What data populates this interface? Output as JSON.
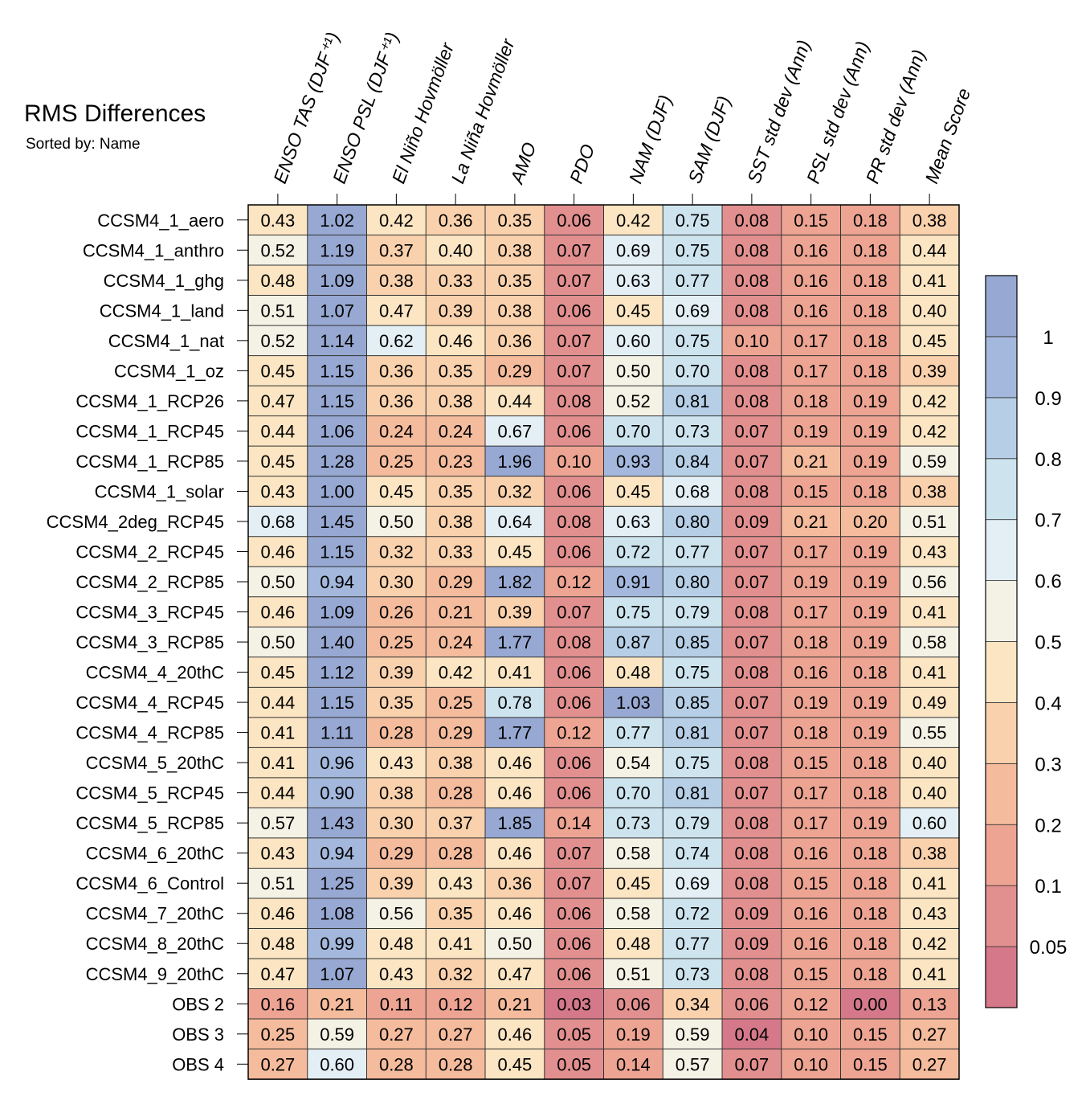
{
  "chart_data": {
    "type": "heatmap",
    "title": "RMS Differences",
    "subtitle": "Sorted by: Name",
    "columns": [
      "ENSO TAS (DJF⁺¹)",
      "ENSO PSL (DJF⁺¹)",
      "El Niño Hovmöller",
      "La Niña Hovmöller",
      "AMO",
      "PDO",
      "NAM (DJF)",
      "SAM (DJF)",
      "SST std dev (Ann)",
      "PSL std dev (Ann)",
      "PR std dev (Ann)",
      "Mean Score"
    ],
    "rows": [
      {
        "name": "CCSM4_1_aero",
        "values": [
          "0.43",
          "1.02",
          "0.42",
          "0.36",
          "0.35",
          "0.06",
          "0.42",
          "0.75",
          "0.08",
          "0.15",
          "0.18",
          "0.38"
        ]
      },
      {
        "name": "CCSM4_1_anthro",
        "values": [
          "0.52",
          "1.19",
          "0.37",
          "0.40",
          "0.38",
          "0.07",
          "0.69",
          "0.75",
          "0.08",
          "0.16",
          "0.18",
          "0.44"
        ]
      },
      {
        "name": "CCSM4_1_ghg",
        "values": [
          "0.48",
          "1.09",
          "0.38",
          "0.33",
          "0.35",
          "0.07",
          "0.63",
          "0.77",
          "0.08",
          "0.16",
          "0.18",
          "0.41"
        ]
      },
      {
        "name": "CCSM4_1_land",
        "values": [
          "0.51",
          "1.07",
          "0.47",
          "0.39",
          "0.38",
          "0.06",
          "0.45",
          "0.69",
          "0.08",
          "0.16",
          "0.18",
          "0.40"
        ]
      },
      {
        "name": "CCSM4_1_nat",
        "values": [
          "0.52",
          "1.14",
          "0.62",
          "0.46",
          "0.36",
          "0.07",
          "0.60",
          "0.75",
          "0.10",
          "0.17",
          "0.18",
          "0.45"
        ]
      },
      {
        "name": "CCSM4_1_oz",
        "values": [
          "0.45",
          "1.15",
          "0.36",
          "0.35",
          "0.29",
          "0.07",
          "0.50",
          "0.70",
          "0.08",
          "0.17",
          "0.18",
          "0.39"
        ]
      },
      {
        "name": "CCSM4_1_RCP26",
        "values": [
          "0.47",
          "1.15",
          "0.36",
          "0.38",
          "0.44",
          "0.08",
          "0.52",
          "0.81",
          "0.08",
          "0.18",
          "0.19",
          "0.42"
        ]
      },
      {
        "name": "CCSM4_1_RCP45",
        "values": [
          "0.44",
          "1.06",
          "0.24",
          "0.24",
          "0.67",
          "0.06",
          "0.70",
          "0.73",
          "0.07",
          "0.19",
          "0.19",
          "0.42"
        ]
      },
      {
        "name": "CCSM4_1_RCP85",
        "values": [
          "0.45",
          "1.28",
          "0.25",
          "0.23",
          "1.96",
          "0.10",
          "0.93",
          "0.84",
          "0.07",
          "0.21",
          "0.19",
          "0.59"
        ]
      },
      {
        "name": "CCSM4_1_solar",
        "values": [
          "0.43",
          "1.00",
          "0.45",
          "0.35",
          "0.32",
          "0.06",
          "0.45",
          "0.68",
          "0.08",
          "0.15",
          "0.18",
          "0.38"
        ]
      },
      {
        "name": "CCSM4_2deg_RCP45",
        "values": [
          "0.68",
          "1.45",
          "0.50",
          "0.38",
          "0.64",
          "0.08",
          "0.63",
          "0.80",
          "0.09",
          "0.21",
          "0.20",
          "0.51"
        ]
      },
      {
        "name": "CCSM4_2_RCP45",
        "values": [
          "0.46",
          "1.15",
          "0.32",
          "0.33",
          "0.45",
          "0.06",
          "0.72",
          "0.77",
          "0.07",
          "0.17",
          "0.19",
          "0.43"
        ]
      },
      {
        "name": "CCSM4_2_RCP85",
        "values": [
          "0.50",
          "0.94",
          "0.30",
          "0.29",
          "1.82",
          "0.12",
          "0.91",
          "0.80",
          "0.07",
          "0.19",
          "0.19",
          "0.56"
        ]
      },
      {
        "name": "CCSM4_3_RCP45",
        "values": [
          "0.46",
          "1.09",
          "0.26",
          "0.21",
          "0.39",
          "0.07",
          "0.75",
          "0.79",
          "0.08",
          "0.17",
          "0.19",
          "0.41"
        ]
      },
      {
        "name": "CCSM4_3_RCP85",
        "values": [
          "0.50",
          "1.40",
          "0.25",
          "0.24",
          "1.77",
          "0.08",
          "0.87",
          "0.85",
          "0.07",
          "0.18",
          "0.19",
          "0.58"
        ]
      },
      {
        "name": "CCSM4_4_20thC",
        "values": [
          "0.45",
          "1.12",
          "0.39",
          "0.42",
          "0.41",
          "0.06",
          "0.48",
          "0.75",
          "0.08",
          "0.16",
          "0.18",
          "0.41"
        ]
      },
      {
        "name": "CCSM4_4_RCP45",
        "values": [
          "0.44",
          "1.15",
          "0.35",
          "0.25",
          "0.78",
          "0.06",
          "1.03",
          "0.85",
          "0.07",
          "0.19",
          "0.19",
          "0.49"
        ]
      },
      {
        "name": "CCSM4_4_RCP85",
        "values": [
          "0.41",
          "1.11",
          "0.28",
          "0.29",
          "1.77",
          "0.12",
          "0.77",
          "0.81",
          "0.07",
          "0.18",
          "0.19",
          "0.55"
        ]
      },
      {
        "name": "CCSM4_5_20thC",
        "values": [
          "0.41",
          "0.96",
          "0.43",
          "0.38",
          "0.46",
          "0.06",
          "0.54",
          "0.75",
          "0.08",
          "0.15",
          "0.18",
          "0.40"
        ]
      },
      {
        "name": "CCSM4_5_RCP45",
        "values": [
          "0.44",
          "0.90",
          "0.38",
          "0.28",
          "0.46",
          "0.06",
          "0.70",
          "0.81",
          "0.07",
          "0.17",
          "0.18",
          "0.40"
        ]
      },
      {
        "name": "CCSM4_5_RCP85",
        "values": [
          "0.57",
          "1.43",
          "0.30",
          "0.37",
          "1.85",
          "0.14",
          "0.73",
          "0.79",
          "0.08",
          "0.17",
          "0.19",
          "0.60"
        ]
      },
      {
        "name": "CCSM4_6_20thC",
        "values": [
          "0.43",
          "0.94",
          "0.29",
          "0.28",
          "0.46",
          "0.07",
          "0.58",
          "0.74",
          "0.08",
          "0.16",
          "0.18",
          "0.38"
        ]
      },
      {
        "name": "CCSM4_6_Control",
        "values": [
          "0.51",
          "1.25",
          "0.39",
          "0.43",
          "0.36",
          "0.07",
          "0.45",
          "0.69",
          "0.08",
          "0.15",
          "0.18",
          "0.41"
        ]
      },
      {
        "name": "CCSM4_7_20thC",
        "values": [
          "0.46",
          "1.08",
          "0.56",
          "0.35",
          "0.46",
          "0.06",
          "0.58",
          "0.72",
          "0.09",
          "0.16",
          "0.18",
          "0.43"
        ]
      },
      {
        "name": "CCSM4_8_20thC",
        "values": [
          "0.48",
          "0.99",
          "0.48",
          "0.41",
          "0.50",
          "0.06",
          "0.48",
          "0.77",
          "0.09",
          "0.16",
          "0.18",
          "0.42"
        ]
      },
      {
        "name": "CCSM4_9_20thC",
        "values": [
          "0.47",
          "1.07",
          "0.43",
          "0.32",
          "0.47",
          "0.06",
          "0.51",
          "0.73",
          "0.08",
          "0.15",
          "0.18",
          "0.41"
        ]
      },
      {
        "name": "OBS 2",
        "values": [
          "0.16",
          "0.21",
          "0.11",
          "0.12",
          "0.21",
          "0.03",
          "0.06",
          "0.34",
          "0.06",
          "0.12",
          "0.00",
          "0.13"
        ]
      },
      {
        "name": "OBS 3",
        "values": [
          "0.25",
          "0.59",
          "0.27",
          "0.27",
          "0.46",
          "0.05",
          "0.19",
          "0.59",
          "0.04",
          "0.10",
          "0.15",
          "0.27"
        ]
      },
      {
        "name": "OBS 4",
        "values": [
          "0.27",
          "0.60",
          "0.28",
          "0.28",
          "0.45",
          "0.05",
          "0.14",
          "0.57",
          "0.07",
          "0.10",
          "0.15",
          "0.27"
        ]
      }
    ],
    "colorbar": {
      "levels": [
        0.05,
        0.1,
        0.2,
        0.3,
        0.4,
        0.5,
        0.6,
        0.7,
        0.8,
        0.9,
        1
      ],
      "labels": [
        "0.05",
        "0.1",
        "0.2",
        "0.3",
        "0.4",
        "0.5",
        "0.6",
        "0.7",
        "0.8",
        "0.9",
        "1"
      ],
      "colors": [
        "#d4788a",
        "#e28f8f",
        "#eda492",
        "#f4bb9c",
        "#f9d1ac",
        "#fbe5c2",
        "#f4f1e5",
        "#e3eff5",
        "#cde4ef",
        "#b6cfe6",
        "#a3b8dc",
        "#97a8d2"
      ]
    }
  }
}
